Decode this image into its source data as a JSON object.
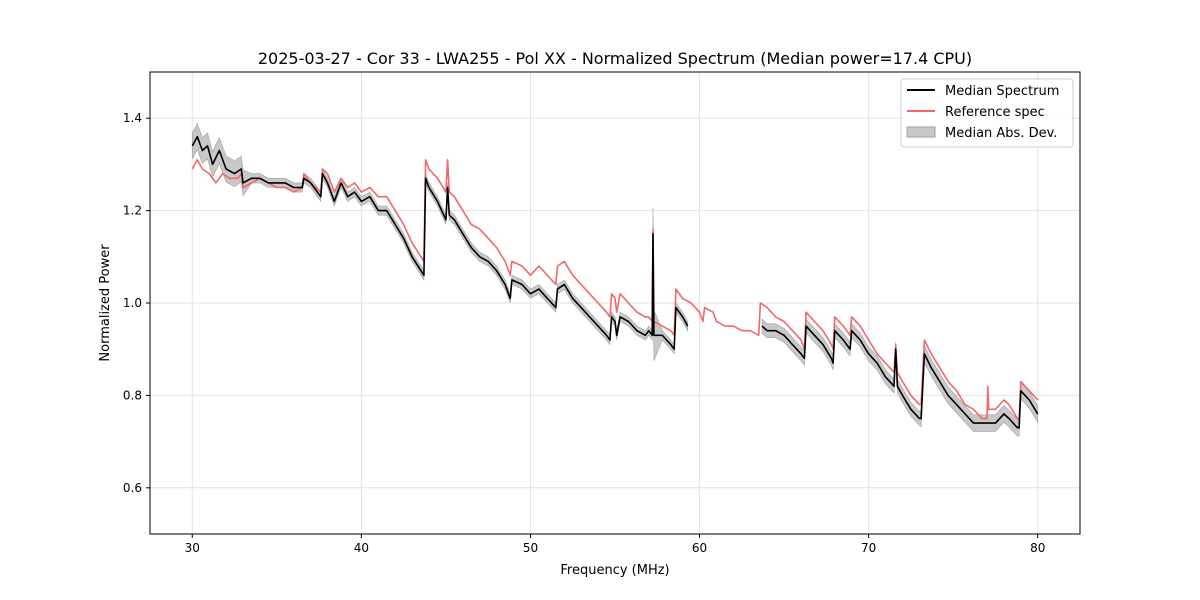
{
  "chart_data": {
    "type": "line",
    "title": "2025-03-27 - Cor 33 - LWA255 - Pol XX - Normalized Spectrum (Median power=17.4 CPU)",
    "xlabel": "Frequency (MHz)",
    "ylabel": "Normalized Power",
    "xlim": [
      27.5,
      82.5
    ],
    "ylim": [
      0.5,
      1.5
    ],
    "xticks": [
      30,
      40,
      50,
      60,
      70,
      80
    ],
    "yticks": [
      0.6,
      0.8,
      1.0,
      1.2,
      1.4
    ],
    "grid": true,
    "legend_position": "top-right",
    "legend": [
      "Median Spectrum",
      "Reference spec",
      "Median Abs. Dev."
    ],
    "colors": {
      "median": "#000000",
      "reference": "#f26868",
      "mad_fill": "#c8c8c8",
      "mad_edge": "#a0a0a0"
    },
    "series": [
      {
        "name": "Median Spectrum",
        "segments": [
          [
            [
              30.0,
              1.34
            ],
            [
              30.3,
              1.36
            ],
            [
              30.6,
              1.33
            ],
            [
              30.9,
              1.34
            ],
            [
              31.2,
              1.3
            ],
            [
              31.6,
              1.33
            ],
            [
              32.0,
              1.29
            ],
            [
              32.5,
              1.28
            ],
            [
              32.9,
              1.29
            ],
            [
              33.0,
              1.26
            ],
            [
              33.5,
              1.27
            ],
            [
              34.0,
              1.27
            ],
            [
              34.5,
              1.26
            ],
            [
              35.0,
              1.26
            ],
            [
              35.5,
              1.26
            ],
            [
              36.0,
              1.25
            ],
            [
              36.5,
              1.25
            ],
            [
              36.6,
              1.27
            ],
            [
              37.0,
              1.26
            ],
            [
              37.6,
              1.23
            ],
            [
              37.7,
              1.28
            ],
            [
              38.0,
              1.26
            ],
            [
              38.4,
              1.22
            ],
            [
              38.8,
              1.26
            ],
            [
              39.2,
              1.23
            ],
            [
              39.6,
              1.24
            ],
            [
              40.0,
              1.22
            ],
            [
              40.5,
              1.23
            ],
            [
              41.0,
              1.2
            ],
            [
              41.5,
              1.2
            ],
            [
              42.0,
              1.17
            ],
            [
              42.5,
              1.14
            ],
            [
              43.0,
              1.1
            ],
            [
              43.7,
              1.06
            ],
            [
              43.8,
              1.27
            ],
            [
              44.0,
              1.25
            ],
            [
              44.5,
              1.22
            ],
            [
              45.0,
              1.18
            ],
            [
              45.1,
              1.25
            ],
            [
              45.2,
              1.19
            ],
            [
              45.5,
              1.18
            ],
            [
              46.0,
              1.15
            ],
            [
              46.5,
              1.12
            ],
            [
              47.0,
              1.1
            ],
            [
              47.5,
              1.09
            ],
            [
              48.0,
              1.07
            ],
            [
              48.5,
              1.04
            ],
            [
              48.8,
              1.01
            ],
            [
              48.9,
              1.05
            ],
            [
              49.5,
              1.04
            ],
            [
              50.0,
              1.02
            ],
            [
              50.5,
              1.03
            ],
            [
              51.0,
              1.01
            ],
            [
              51.5,
              0.99
            ],
            [
              51.6,
              1.03
            ],
            [
              52.0,
              1.04
            ],
            [
              52.5,
              1.01
            ],
            [
              53.0,
              0.99
            ],
            [
              53.5,
              0.97
            ],
            [
              54.0,
              0.95
            ],
            [
              54.5,
              0.93
            ],
            [
              54.7,
              0.92
            ],
            [
              54.8,
              0.97
            ],
            [
              55.0,
              0.96
            ],
            [
              55.1,
              0.93
            ],
            [
              55.3,
              0.97
            ],
            [
              55.8,
              0.96
            ],
            [
              56.3,
              0.94
            ],
            [
              56.8,
              0.93
            ],
            [
              57.0,
              0.94
            ],
            [
              57.2,
              0.93
            ],
            [
              57.25,
              1.15
            ],
            [
              57.3,
              0.93
            ],
            [
              57.8,
              0.93
            ],
            [
              58.3,
              0.91
            ],
            [
              58.5,
              0.9
            ],
            [
              58.6,
              0.99
            ],
            [
              59.0,
              0.97
            ],
            [
              59.3,
              0.95
            ]
          ],
          [
            [
              63.7,
              0.95
            ],
            [
              64.0,
              0.94
            ],
            [
              64.5,
              0.94
            ],
            [
              65.0,
              0.93
            ],
            [
              65.5,
              0.91
            ],
            [
              66.0,
              0.89
            ],
            [
              66.2,
              0.88
            ],
            [
              66.3,
              0.95
            ],
            [
              66.8,
              0.93
            ],
            [
              67.3,
              0.91
            ],
            [
              67.8,
              0.88
            ],
            [
              67.9,
              0.87
            ],
            [
              68.0,
              0.94
            ],
            [
              68.5,
              0.92
            ],
            [
              68.9,
              0.9
            ],
            [
              69.0,
              0.94
            ],
            [
              69.5,
              0.92
            ],
            [
              70.0,
              0.89
            ],
            [
              70.5,
              0.87
            ],
            [
              71.0,
              0.84
            ],
            [
              71.5,
              0.82
            ],
            [
              71.6,
              0.9
            ],
            [
              71.7,
              0.82
            ],
            [
              72.0,
              0.8
            ],
            [
              72.5,
              0.77
            ],
            [
              73.0,
              0.75
            ],
            [
              73.1,
              0.75
            ],
            [
              73.3,
              0.89
            ],
            [
              73.7,
              0.86
            ],
            [
              74.2,
              0.83
            ],
            [
              74.7,
              0.8
            ],
            [
              75.2,
              0.78
            ],
            [
              75.7,
              0.76
            ],
            [
              76.2,
              0.74
            ],
            [
              76.7,
              0.74
            ],
            [
              77.0,
              0.74
            ],
            [
              77.5,
              0.74
            ],
            [
              78.0,
              0.76
            ],
            [
              78.3,
              0.75
            ],
            [
              78.8,
              0.73
            ],
            [
              78.9,
              0.73
            ],
            [
              79.0,
              0.81
            ],
            [
              79.5,
              0.79
            ],
            [
              80.0,
              0.76
            ]
          ]
        ]
      },
      {
        "name": "Reference spec",
        "segments": [
          [
            [
              30.0,
              1.29
            ],
            [
              30.3,
              1.31
            ],
            [
              30.6,
              1.29
            ],
            [
              31.0,
              1.28
            ],
            [
              31.4,
              1.26
            ],
            [
              31.8,
              1.28
            ],
            [
              32.2,
              1.27
            ],
            [
              32.7,
              1.27
            ],
            [
              32.9,
              1.28
            ],
            [
              33.0,
              1.25
            ],
            [
              33.5,
              1.26
            ],
            [
              34.0,
              1.27
            ],
            [
              34.5,
              1.26
            ],
            [
              35.0,
              1.25
            ],
            [
              35.5,
              1.25
            ],
            [
              36.0,
              1.24
            ],
            [
              36.5,
              1.25
            ],
            [
              36.6,
              1.28
            ],
            [
              37.0,
              1.26
            ],
            [
              37.6,
              1.24
            ],
            [
              37.7,
              1.29
            ],
            [
              38.0,
              1.28
            ],
            [
              38.4,
              1.24
            ],
            [
              38.8,
              1.27
            ],
            [
              39.2,
              1.25
            ],
            [
              39.6,
              1.26
            ],
            [
              40.0,
              1.24
            ],
            [
              40.5,
              1.25
            ],
            [
              41.0,
              1.23
            ],
            [
              41.5,
              1.23
            ],
            [
              42.0,
              1.2
            ],
            [
              42.5,
              1.17
            ],
            [
              43.0,
              1.13
            ],
            [
              43.7,
              1.09
            ],
            [
              43.8,
              1.31
            ],
            [
              44.0,
              1.29
            ],
            [
              44.5,
              1.27
            ],
            [
              45.0,
              1.24
            ],
            [
              45.1,
              1.31
            ],
            [
              45.2,
              1.24
            ],
            [
              45.5,
              1.23
            ],
            [
              46.0,
              1.2
            ],
            [
              46.5,
              1.17
            ],
            [
              47.0,
              1.16
            ],
            [
              47.5,
              1.14
            ],
            [
              48.0,
              1.12
            ],
            [
              48.5,
              1.09
            ],
            [
              48.8,
              1.06
            ],
            [
              48.9,
              1.09
            ],
            [
              49.5,
              1.08
            ],
            [
              50.0,
              1.06
            ],
            [
              50.5,
              1.08
            ],
            [
              51.0,
              1.06
            ],
            [
              51.5,
              1.04
            ],
            [
              51.6,
              1.08
            ],
            [
              52.0,
              1.09
            ],
            [
              52.5,
              1.06
            ],
            [
              53.0,
              1.04
            ],
            [
              53.5,
              1.02
            ],
            [
              54.0,
              1.0
            ],
            [
              54.5,
              0.98
            ],
            [
              54.7,
              0.97
            ],
            [
              54.8,
              1.02
            ],
            [
              55.0,
              1.01
            ],
            [
              55.1,
              0.98
            ],
            [
              55.3,
              1.02
            ],
            [
              55.8,
              1.0
            ],
            [
              56.3,
              0.98
            ],
            [
              56.8,
              0.97
            ],
            [
              57.0,
              0.97
            ],
            [
              57.2,
              0.96
            ],
            [
              57.25,
              1.16
            ],
            [
              57.3,
              0.96
            ],
            [
              57.8,
              0.95
            ],
            [
              58.3,
              0.94
            ],
            [
              58.5,
              0.93
            ],
            [
              58.6,
              1.03
            ],
            [
              59.0,
              1.01
            ],
            [
              59.5,
              1.0
            ],
            [
              60.0,
              0.98
            ],
            [
              60.2,
              0.96
            ],
            [
              60.3,
              0.99
            ],
            [
              60.8,
              0.98
            ],
            [
              61.0,
              0.96
            ],
            [
              61.5,
              0.95
            ],
            [
              62.0,
              0.95
            ],
            [
              62.5,
              0.94
            ],
            [
              63.0,
              0.94
            ],
            [
              63.5,
              0.93
            ],
            [
              63.6,
              1.0
            ],
            [
              64.0,
              0.99
            ],
            [
              64.5,
              0.97
            ],
            [
              65.0,
              0.96
            ],
            [
              65.5,
              0.94
            ],
            [
              66.0,
              0.92
            ],
            [
              66.2,
              0.9
            ],
            [
              66.3,
              0.98
            ],
            [
              66.8,
              0.96
            ],
            [
              67.3,
              0.94
            ],
            [
              67.8,
              0.91
            ],
            [
              67.9,
              0.9
            ],
            [
              68.0,
              0.97
            ],
            [
              68.5,
              0.95
            ],
            [
              68.9,
              0.93
            ],
            [
              69.0,
              0.97
            ],
            [
              69.5,
              0.95
            ],
            [
              70.0,
              0.92
            ],
            [
              70.5,
              0.89
            ],
            [
              71.0,
              0.87
            ],
            [
              71.5,
              0.85
            ],
            [
              71.6,
              0.91
            ],
            [
              71.7,
              0.85
            ],
            [
              72.0,
              0.83
            ],
            [
              72.5,
              0.8
            ],
            [
              73.0,
              0.78
            ],
            [
              73.1,
              0.78
            ],
            [
              73.3,
              0.92
            ],
            [
              73.7,
              0.89
            ],
            [
              74.2,
              0.86
            ],
            [
              74.7,
              0.83
            ],
            [
              75.2,
              0.81
            ],
            [
              75.7,
              0.78
            ],
            [
              76.2,
              0.77
            ],
            [
              76.7,
              0.75
            ],
            [
              77.0,
              0.75
            ],
            [
              77.05,
              0.82
            ],
            [
              77.1,
              0.77
            ],
            [
              77.5,
              0.77
            ],
            [
              78.0,
              0.79
            ],
            [
              78.3,
              0.78
            ],
            [
              78.8,
              0.75
            ],
            [
              78.9,
              0.75
            ],
            [
              79.0,
              0.83
            ],
            [
              79.5,
              0.81
            ],
            [
              80.0,
              0.79
            ]
          ]
        ]
      },
      {
        "name": "Median Abs. Dev.",
        "bands": [
          {
            "from": 30.0,
            "to": 33.0,
            "mad": 0.028
          },
          {
            "from": 33.0,
            "to": 57.2,
            "mad": 0.01
          },
          {
            "from": 57.2,
            "to": 57.3,
            "mad": 0.055
          },
          {
            "from": 57.3,
            "to": 63.6,
            "mad": 0.01
          },
          {
            "from": 63.6,
            "to": 73.0,
            "mad": 0.015
          },
          {
            "from": 73.0,
            "to": 80.0,
            "mad": 0.018
          }
        ]
      }
    ]
  }
}
